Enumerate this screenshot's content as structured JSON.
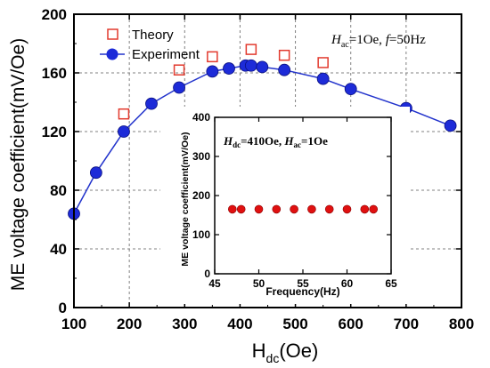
{
  "colors": {
    "theory": "#e23a2e",
    "experiment_fill": "#1d2bd8",
    "experiment_line": "#2233cc",
    "inset_marker": "#e01010",
    "axes": "#000000",
    "grid": "#808080"
  },
  "chart_data": [
    {
      "type": "scatter",
      "xlabel": "H",
      "xlabel_sub": "dc",
      "xlabel_unit": "(Oe)",
      "ylabel": "ME voltage coefficient(mV/Oe)",
      "xlim": [
        100,
        800
      ],
      "ylim": [
        0,
        200
      ],
      "xticks": [
        "100",
        "200",
        "300",
        "400",
        "500",
        "600",
        "700",
        "800"
      ],
      "yticks": [
        "0",
        "40",
        "80",
        "120",
        "160",
        "200"
      ],
      "grid": true,
      "legend_position": "top-left",
      "annotation": {
        "h": "H",
        "h_sub": "ac",
        "h_rest": "=1Oe, ",
        "f": "f",
        "f_rest": "=50Hz"
      },
      "series": [
        {
          "name": "Theory",
          "marker": "open-square",
          "points": [
            [
              190,
              132
            ],
            [
              290,
              162
            ],
            [
              350,
              171
            ],
            [
              420,
              176
            ],
            [
              480,
              172
            ],
            [
              550,
              167
            ]
          ]
        },
        {
          "name": "Experiment",
          "marker": "filled-circle-line",
          "points": [
            [
              100,
              64
            ],
            [
              140,
              92
            ],
            [
              190,
              120
            ],
            [
              240,
              139
            ],
            [
              290,
              150
            ],
            [
              350,
              161
            ],
            [
              380,
              163
            ],
            [
              410,
              165
            ],
            [
              420,
              165
            ],
            [
              440,
              164
            ],
            [
              480,
              162
            ],
            [
              550,
              156
            ],
            [
              600,
              149
            ],
            [
              700,
              136
            ],
            [
              780,
              124
            ]
          ]
        }
      ]
    },
    {
      "type": "scatter",
      "xlabel": "Frequency(Hz)",
      "ylabel": "ME voltage coefficient(mV/Oe)",
      "xlim": [
        45,
        65
      ],
      "ylim": [
        0,
        400
      ],
      "xticks": [
        "45",
        "50",
        "55",
        "60",
        "65"
      ],
      "yticks": [
        "0",
        "100",
        "200",
        "300",
        "400"
      ],
      "grid": false,
      "annotation": {
        "h1": "H",
        "h1_sub": "dc",
        "h1_rest": "=410Oe, ",
        "h2": "H",
        "h2_sub": "ac",
        "h2_rest": "=1Oe"
      },
      "series": [
        {
          "marker": "filled-circle",
          "points": [
            [
              47,
              165
            ],
            [
              48,
              165
            ],
            [
              50,
              165
            ],
            [
              52,
              165
            ],
            [
              54,
              165
            ],
            [
              56,
              165
            ],
            [
              58,
              165
            ],
            [
              60,
              165
            ],
            [
              62,
              165
            ],
            [
              63,
              165
            ]
          ]
        }
      ]
    }
  ]
}
